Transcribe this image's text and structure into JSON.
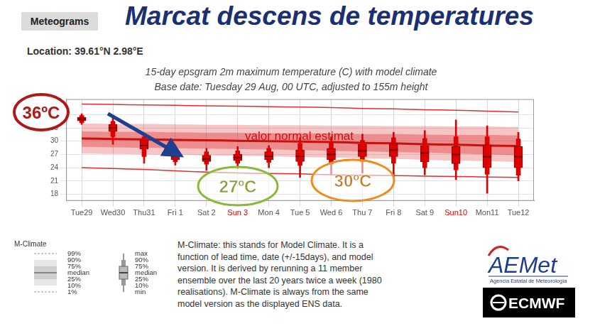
{
  "header": {
    "label": "Meteograms",
    "title": "Marcat descens de temperatures",
    "location": "Location: 39.61°N 2.98°E"
  },
  "chart_data": {
    "type": "boxplot",
    "title": "15-day epsgram 2m maximum temperature (C) with model climate",
    "subtitle": "Base date: Tuesday 29 Aug, 00 UTC, adjusted to 155m height",
    "categories": [
      "Tue29",
      "Wed30",
      "Thu31",
      "Fri 1",
      "Sat 2",
      "Sun 3",
      "Mon 4",
      "Tue 5",
      "Wed 6",
      "Thu 7",
      "Fri 8",
      "Sat 9",
      "Sun10",
      "Mon11",
      "Tue12"
    ],
    "ensemble": {
      "color": "#e00000",
      "min": [
        33.8,
        29.3,
        25.0,
        24.6,
        23.4,
        23.8,
        24.0,
        21.8,
        22.6,
        22.8,
        22.0,
        22.4,
        21.3,
        18.2,
        21.0
      ],
      "p10": [
        34.2,
        31.0,
        26.5,
        25.3,
        24.8,
        25.0,
        25.2,
        24.5,
        24.8,
        25.3,
        25.0,
        24.0,
        23.5,
        22.5,
        22.3
      ],
      "p25": [
        34.6,
        32.2,
        28.2,
        25.8,
        25.4,
        25.6,
        25.8,
        25.4,
        25.8,
        26.5,
        26.5,
        25.3,
        24.9,
        24.0,
        24.0
      ],
      "median": [
        35.0,
        33.0,
        29.0,
        26.6,
        26.0,
        26.3,
        26.6,
        26.6,
        27.0,
        27.8,
        28.0,
        27.3,
        27.0,
        26.5,
        26.5
      ],
      "p75": [
        35.4,
        33.8,
        30.2,
        27.8,
        26.8,
        27.0,
        27.6,
        28.0,
        28.4,
        29.3,
        29.5,
        29.0,
        28.8,
        29.2,
        28.8
      ],
      "p90": [
        35.8,
        34.5,
        31.0,
        28.5,
        27.6,
        27.8,
        28.4,
        29.5,
        29.6,
        30.2,
        30.8,
        30.6,
        31.0,
        31.0,
        30.5
      ],
      "max": [
        36.2,
        35.3,
        31.7,
        29.2,
        28.4,
        28.8,
        29.0,
        30.8,
        31.0,
        31.6,
        32.0,
        32.4,
        34.8,
        33.5,
        32.0
      ]
    },
    "m_climate": {
      "color": "#e03030",
      "p99": [
        38.4,
        38.3,
        38.2,
        38.1,
        38.0,
        37.9,
        37.8,
        37.7,
        37.6,
        37.4,
        37.3,
        37.1,
        37.0,
        36.8,
        36.6
      ],
      "p90": [
        34.0,
        33.9,
        33.9,
        33.8,
        33.7,
        33.7,
        33.6,
        33.6,
        33.5,
        33.5,
        33.4,
        33.4,
        33.3,
        33.3,
        33.2
      ],
      "p75": [
        32.2,
        32.1,
        32.1,
        32.0,
        31.9,
        31.9,
        31.8,
        31.8,
        31.7,
        31.6,
        31.6,
        31.5,
        31.4,
        31.4,
        31.3
      ],
      "median": [
        30.6,
        30.5,
        30.4,
        30.3,
        30.2,
        30.1,
        30.0,
        29.9,
        29.8,
        29.6,
        29.5,
        29.3,
        29.2,
        29.0,
        28.9
      ],
      "p25": [
        28.7,
        28.6,
        28.5,
        28.4,
        28.3,
        28.2,
        28.1,
        28.0,
        27.8,
        27.7,
        27.5,
        27.4,
        27.2,
        27.0,
        26.8
      ],
      "p10": [
        27.2,
        27.1,
        27.0,
        26.9,
        26.8,
        26.7,
        26.6,
        26.4,
        26.3,
        26.1,
        26.0,
        25.8,
        25.6,
        25.5,
        25.3
      ],
      "p1": [
        24.0,
        23.8,
        23.6,
        23.3,
        23.0,
        22.8,
        22.7,
        22.6,
        22.4,
        22.3,
        22.2,
        22.1,
        22.0,
        21.9,
        21.8
      ]
    },
    "ylim": [
      16.5,
      39.5
    ],
    "yticks": [
      18,
      21,
      24,
      27,
      30,
      33,
      36
    ],
    "grid": true,
    "annotations": [
      "36ºC",
      "valor normal estimat",
      "27ºC",
      "30ºC"
    ]
  },
  "legend_panel": {
    "m_climate": {
      "title": "M-Climate",
      "labels": [
        "99%",
        "90%",
        "75%",
        "median",
        "25%",
        "10%",
        "1%"
      ]
    },
    "ensemble": {
      "labels": [
        "max",
        "90%",
        "75%",
        "median",
        "25%",
        "10%",
        "min"
      ]
    }
  },
  "note": [
    "M-Climate: this stands for Model Climate. It is a",
    "function of lead time, date (+/-15days), and model",
    "version. It is derived by rerunning a 11 member",
    "ensemble over the last 20 years twice a week (1980",
    "realisations). M-Climate is always from the same",
    "model version as the displayed ENS data."
  ],
  "logos": {
    "aemet": "AEMet",
    "aemet_sub": "Agencia Estatal de Meteorología",
    "ecmwf": "ECMWF"
  }
}
